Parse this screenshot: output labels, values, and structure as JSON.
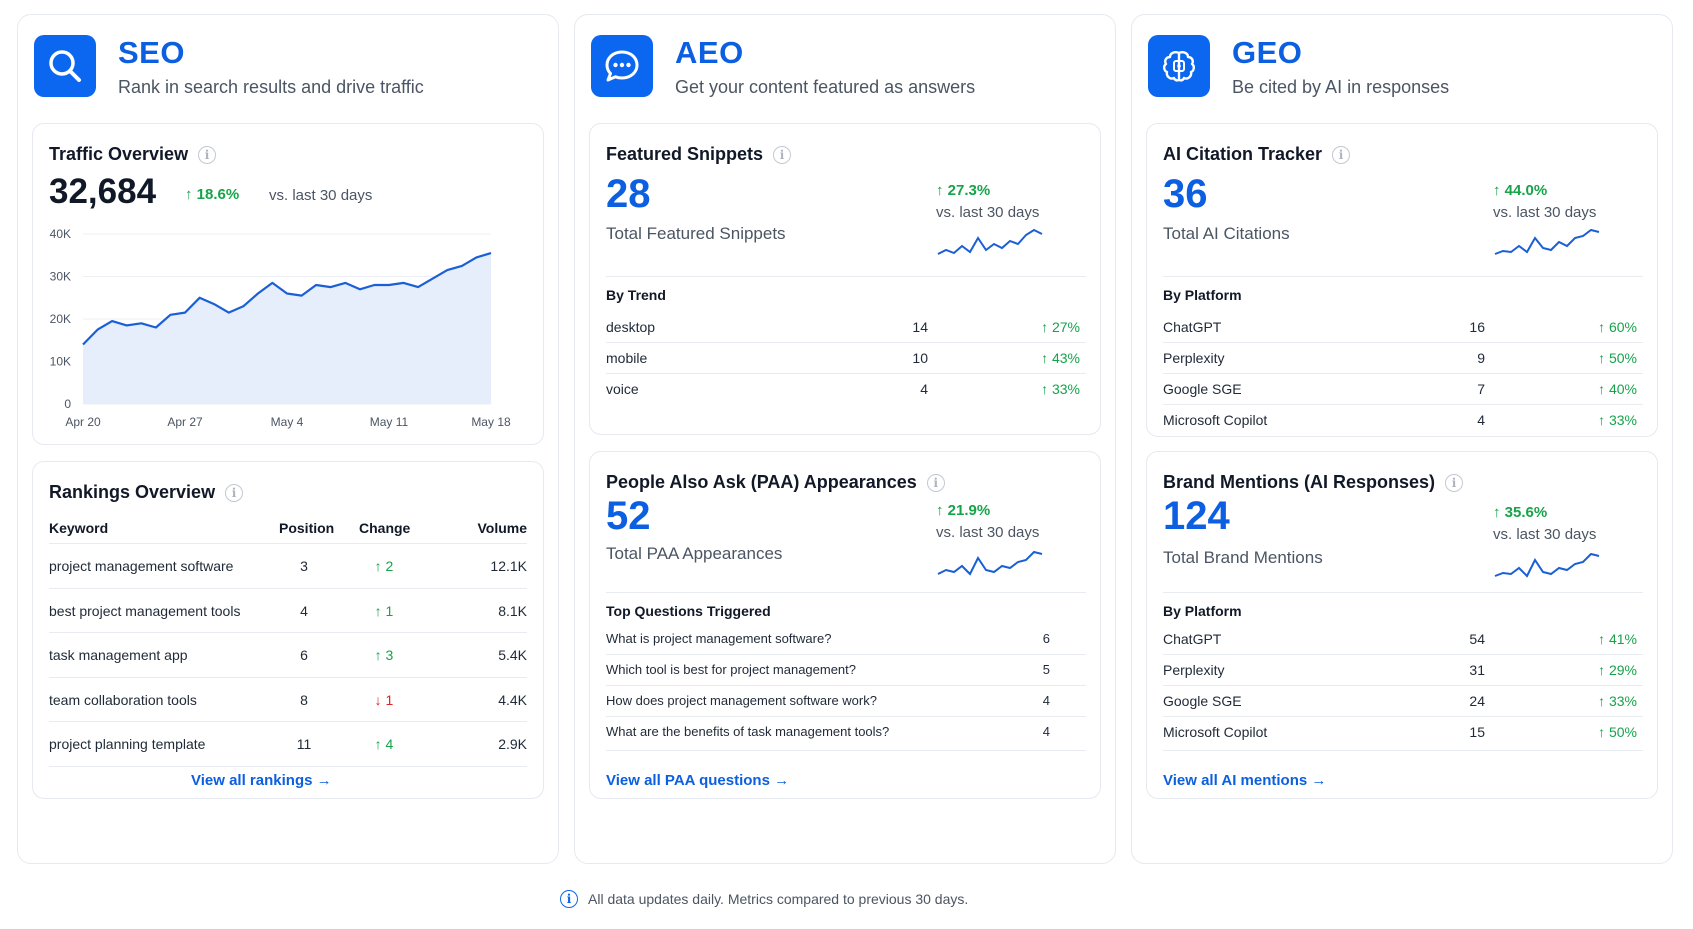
{
  "seo": {
    "title": "SEO",
    "subtitle": "Rank in search results and drive traffic",
    "logo_icon": "search-icon",
    "traffic": {
      "title": "Traffic Overview",
      "value": "32,684",
      "change": "↑ 18.6%",
      "vs": "vs. last 30 days",
      "chart_data": {
        "type": "area",
        "x": [
          "Apr 20",
          "Apr 21",
          "Apr 22",
          "Apr 23",
          "Apr 24",
          "Apr 25",
          "Apr 26",
          "Apr 27",
          "Apr 28",
          "Apr 29",
          "Apr 30",
          "May 1",
          "May 2",
          "May 3",
          "May 4",
          "May 5",
          "May 6",
          "May 7",
          "May 8",
          "May 9",
          "May 10",
          "May 11",
          "May 12",
          "May 13",
          "May 14",
          "May 15",
          "May 16",
          "May 17",
          "May 18"
        ],
        "values": [
          14000,
          17500,
          19500,
          18500,
          19000,
          18000,
          21000,
          21500,
          25000,
          23500,
          21500,
          23000,
          26000,
          28500,
          26000,
          25500,
          28000,
          27500,
          28500,
          27000,
          28000,
          28000,
          28500,
          27500,
          29500,
          31500,
          32500,
          34500,
          35500
        ],
        "xticks": [
          "Apr 20",
          "Apr 27",
          "May 4",
          "May 11",
          "May 18"
        ],
        "yticks": [
          "0",
          "10K",
          "20K",
          "30K",
          "40K"
        ],
        "ylim": [
          0,
          40000
        ],
        "color": "#1a5fd6"
      }
    },
    "rankings": {
      "title": "Rankings Overview",
      "headers": {
        "keyword": "Keyword",
        "position": "Position",
        "change": "Change",
        "volume": "Volume"
      },
      "rows": [
        {
          "keyword": "project management software",
          "position": "3",
          "change": "↑ 2",
          "volume": "12.1K",
          "dir": "up"
        },
        {
          "keyword": "best project management tools",
          "position": "4",
          "change": "↑ 1",
          "volume": "8.1K",
          "dir": "up"
        },
        {
          "keyword": "task management app",
          "position": "6",
          "change": "↑ 3",
          "volume": "5.4K",
          "dir": "up"
        },
        {
          "keyword": "team collaboration tools",
          "position": "8",
          "change": "↓ 1",
          "volume": "4.4K",
          "dir": "down"
        },
        {
          "keyword": "project planning template",
          "position": "11",
          "change": "↑ 4",
          "volume": "2.9K",
          "dir": "up"
        }
      ],
      "link": "View all rankings →"
    }
  },
  "aeo": {
    "title": "AEO",
    "subtitle": "Get your content featured as answers",
    "logo_icon": "chat-bubble-icon",
    "snippets": {
      "title": "Featured Snippets",
      "value": "28",
      "label": "Total Featured Snippets",
      "change": "↑ 27.3%",
      "vs": "vs. last 30 days",
      "section": "By Trend",
      "rows": [
        {
          "label": "desktop",
          "count": "14",
          "pct": "↑ 27%"
        },
        {
          "label": "mobile",
          "count": "10",
          "pct": "↑ 43%"
        },
        {
          "label": "voice",
          "count": "4",
          "pct": "↑ 33%"
        }
      ]
    },
    "paa": {
      "title": "People Also Ask (PAA) Appearances",
      "value": "52",
      "label": "Total PAA Appearances",
      "change": "↑ 21.9%",
      "vs": "vs. last 30 days",
      "section": "Top Questions Triggered",
      "rows": [
        {
          "label": "What is project management software?",
          "count": "6"
        },
        {
          "label": "Which tool is best for project management?",
          "count": "5"
        },
        {
          "label": "How does project management software work?",
          "count": "4"
        },
        {
          "label": "What are the benefits of task management tools?",
          "count": "4"
        }
      ],
      "link": "View all PAA questions →"
    }
  },
  "geo": {
    "title": "GEO",
    "subtitle": "Be cited by AI in responses",
    "logo_icon": "ai-brain-icon",
    "citations": {
      "title": "AI Citation Tracker",
      "value": "36",
      "label": "Total AI Citations",
      "change": "↑ 44.0%",
      "vs": "vs. last 30 days",
      "section": "By Platform",
      "rows": [
        {
          "label": "ChatGPT",
          "count": "16",
          "pct": "↑ 60%"
        },
        {
          "label": "Perplexity",
          "count": "9",
          "pct": "↑ 50%"
        },
        {
          "label": "Google SGE",
          "count": "7",
          "pct": "↑ 40%"
        },
        {
          "label": "Microsoft Copilot",
          "count": "4",
          "pct": "↑ 33%"
        }
      ]
    },
    "mentions": {
      "title": "Brand Mentions (AI Responses)",
      "value": "124",
      "label": "Total Brand Mentions",
      "change": "↑ 35.6%",
      "vs": "vs. last 30 days",
      "section": "By Platform",
      "rows": [
        {
          "label": "ChatGPT",
          "count": "54",
          "pct": "↑ 41%"
        },
        {
          "label": "Perplexity",
          "count": "31",
          "pct": "↑ 29%"
        },
        {
          "label": "Google SGE",
          "count": "24",
          "pct": "↑ 33%"
        },
        {
          "label": "Microsoft Copilot",
          "count": "15",
          "pct": "↑ 50%"
        }
      ],
      "link": "View all AI mentions →"
    }
  },
  "footer": {
    "text": "All data updates daily. Metrics compared to previous 30 days."
  },
  "colors": {
    "accent": "#0b66f0",
    "positive": "#16a34a",
    "negative": "#dc2626"
  }
}
